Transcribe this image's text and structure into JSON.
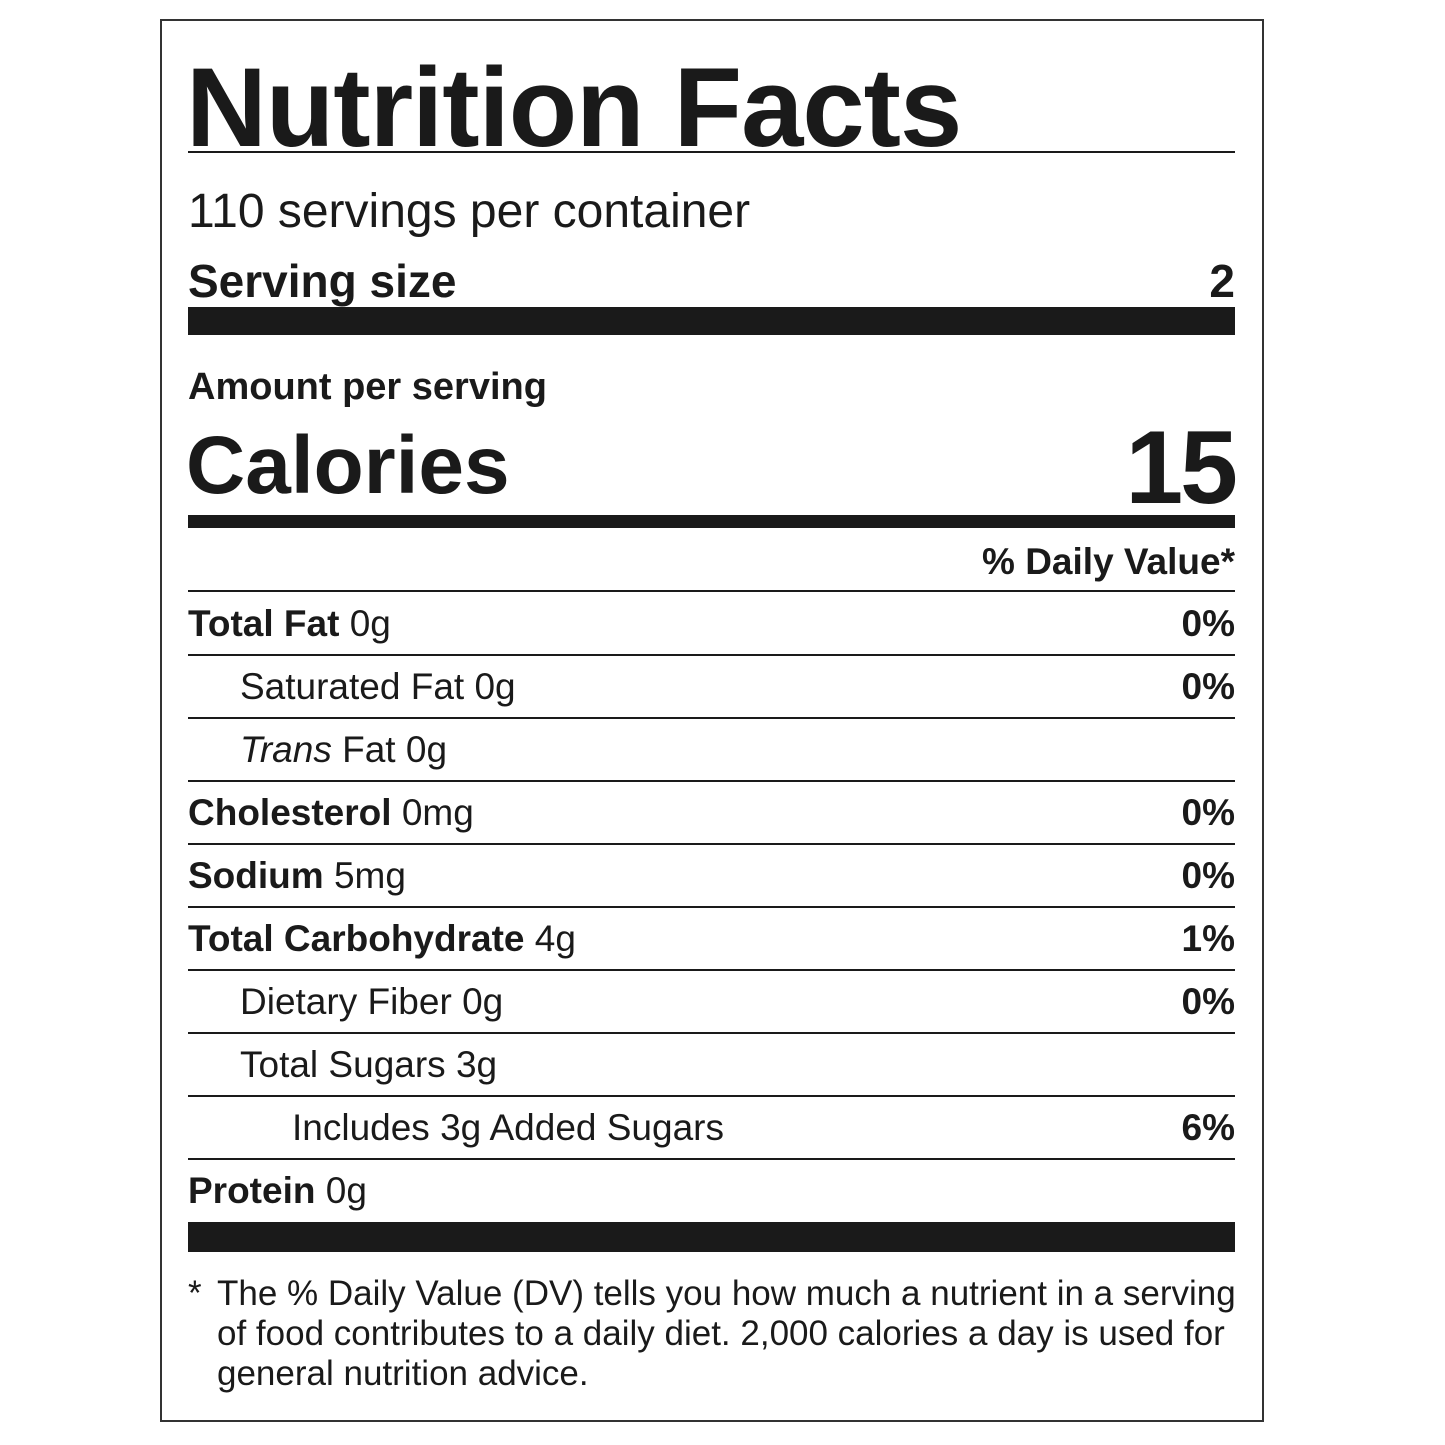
{
  "header": {
    "title": "Nutrition Facts",
    "servings": "110 servings per container",
    "serving_size_label": "Serving size",
    "serving_size_value": "2"
  },
  "calories": {
    "amount_label": "Amount per serving",
    "label": "Calories",
    "value": "15"
  },
  "dv_header": "% Daily Value*",
  "rows": [
    {
      "name": "Total Fat",
      "amount": "0g",
      "dv": "0%",
      "sub": [
        {
          "name": "Saturated Fat",
          "amount": "0g",
          "dv": "0%"
        },
        {
          "name_italic": "Trans",
          "name": "Fat",
          "amount": "0g"
        }
      ]
    },
    {
      "name": "Cholesterol",
      "amount": "0mg",
      "dv": "0%"
    },
    {
      "name": "Sodium",
      "amount": "5mg",
      "dv": "0%"
    },
    {
      "name": "Total Carbohydrate",
      "amount": "4g",
      "dv": "1%",
      "sub": [
        {
          "name": "Dietary Fiber",
          "amount": "0g",
          "dv": "0%"
        },
        {
          "name": "Total Sugars",
          "amount": "3g",
          "sub": [
            {
              "name": "Includes 3g Added Sugars",
              "dv": "6%"
            }
          ]
        }
      ]
    },
    {
      "name": "Protein",
      "amount": "0g"
    }
  ],
  "footnote": {
    "marker": "*",
    "text": "The % Daily Value (DV) tells you how much a nutrient in a serving of food contributes to a daily diet. 2,000 calories a day is used for general nutrition advice."
  }
}
